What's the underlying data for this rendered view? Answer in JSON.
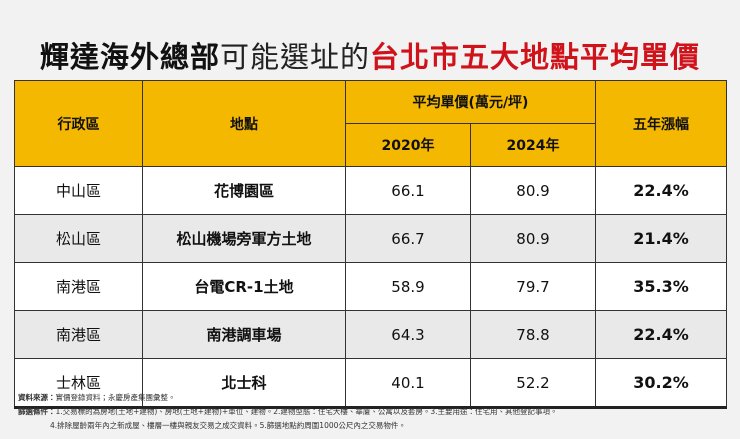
{
  "title": {
    "part1": "輝達海外總部",
    "part2": "可能選址的",
    "part3": "台北市五大地點平均單價"
  },
  "table": {
    "header": {
      "district": "行政區",
      "location": "地點",
      "price": "平均單價(萬元/坪)",
      "year1": "2020年",
      "year2": "2024年",
      "growth": "五年漲幅"
    },
    "rows": [
      [
        "中山區",
        "花博園區",
        66.1,
        80.9,
        "22.4%"
      ],
      [
        "松山區",
        "松山機場旁軍方土地",
        66.7,
        80.9,
        "21.4%"
      ],
      [
        "南港區",
        "台電CR-1土地",
        58.9,
        79.7,
        "35.3%"
      ],
      [
        "南港區",
        "南港調車場",
        64.3,
        78.8,
        "22.4%"
      ],
      [
        "士林區",
        "北士科",
        40.1,
        52.2,
        "30.2%"
      ]
    ]
  },
  "notes": {
    "source_label": "資料來源：",
    "source": "實價登錄資料；永慶房產集團彙整。",
    "filter_label": "篩選條件：",
    "filter_line1": "1.交易標的為房地(土地+建物)、房地(土地+建物)+車位、建物。2.建物型態：住宅大樓、華廈、公寓以及套房。3.主要用途：住宅用、其他登記事項。",
    "filter_line2": "4.排除屋齡兩年內之新成屋、樓層一樓與親友交易之成交資料。5.篩選地點約周圍1000公尺內之交易物件。"
  }
}
